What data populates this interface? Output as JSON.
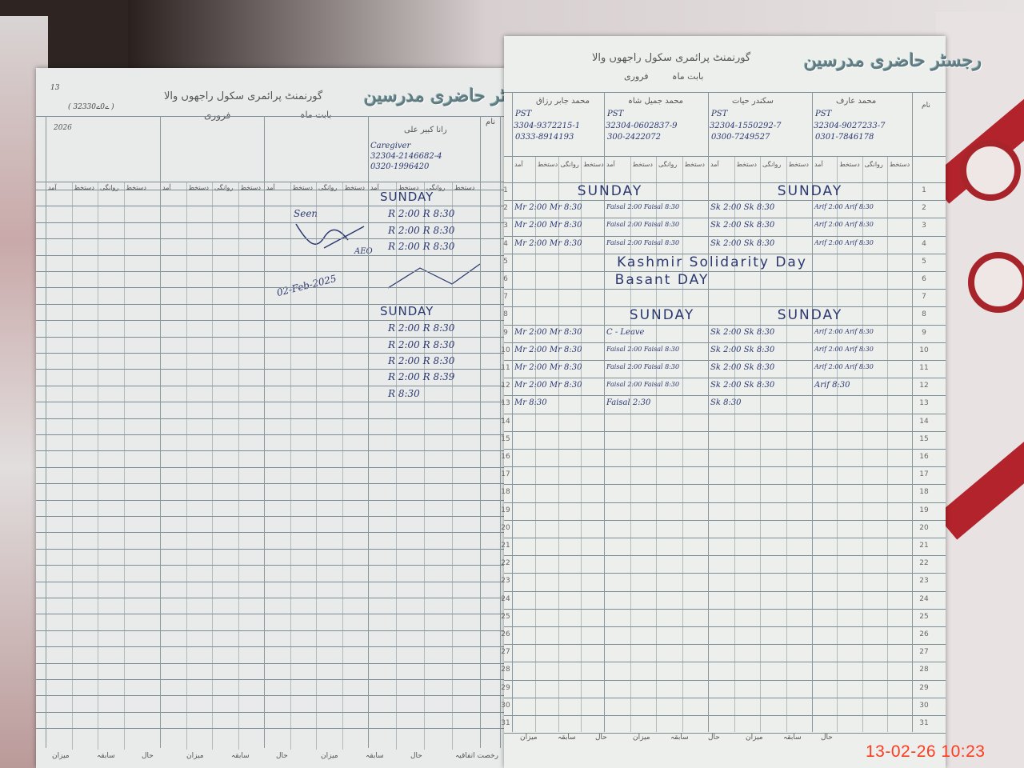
{
  "left_page": {
    "page_number": "13",
    "title": "رجسٹر حاضری مدرسین",
    "school": "گورنمنٹ پرائمری سکول راجھوں والا",
    "school_code": "( 32330ے0ے )",
    "month_label": "بابت ماہ",
    "month": "فروری",
    "year": "2026",
    "teacher": {
      "name": "رانا کبیر علی",
      "role": "Caregiver",
      "cnic": "32304-2146682-4",
      "phone": "0320-1996420"
    },
    "name_label": "نام",
    "sub_headers": [
      "آمد",
      "دستخط",
      "روانگی",
      "دستخط"
    ],
    "entries": [
      {
        "row": 1,
        "text": "SUNDAY"
      },
      {
        "row": 2,
        "text": "R 2:00  R 8:30"
      },
      {
        "row": 3,
        "text": "R 2:00  R 8:30"
      },
      {
        "row": 4,
        "text": "R 2:00  R 8:30"
      },
      {
        "row": 8,
        "text": "SUNDAY"
      },
      {
        "row": 9,
        "text": "R 2:00  R 8:30"
      },
      {
        "row": 10,
        "text": "R 2:00  R 8:30"
      },
      {
        "row": 11,
        "text": "R 2:00  R 8:30"
      },
      {
        "row": 12,
        "text": "R 2:00  R 8:39"
      },
      {
        "row": 13,
        "text": "R 8:30"
      }
    ],
    "signature": {
      "seen": "Seen",
      "role": "AEO",
      "date": "02-Feb-2025"
    },
    "footer_labels": [
      "میزان",
      "سابقہ",
      "حال",
      "میزان",
      "سابقہ",
      "حال",
      "میزان",
      "سابقہ",
      "حال",
      "رخصت اتفاقیہ"
    ]
  },
  "right_page": {
    "title": "رجسٹر حاضری مدرسین",
    "school": "گورنمنٹ پرائمری سکول راجھوں والا",
    "month_label": "بابت ماہ",
    "month": "فروری",
    "name_label": "نام",
    "teachers": [
      {
        "name": "محمد جابر رزاق",
        "role": "PST",
        "cnic": "3304-9372215-1",
        "phone": "0333-8914193"
      },
      {
        "name": "محمد جمیل شاہ",
        "role": "PST",
        "cnic": "32304-0602837-9",
        "phone": "300-2422072"
      },
      {
        "name": "سکندر حیات",
        "role": "PST",
        "cnic": "32304-1550292-7",
        "phone": "0300-7249527"
      },
      {
        "name": "محمد عارف",
        "role": "PST",
        "cnic": "32304-9027233-7",
        "phone": "0301-7846178"
      }
    ],
    "sub_headers": [
      "آمد",
      "دستخط",
      "روانگی",
      "دستخط"
    ],
    "span_entries": [
      {
        "row": 1,
        "from": 0,
        "to": 1,
        "text": "SUNDAY"
      },
      {
        "row": 1,
        "from": 2,
        "to": 3,
        "text": "SUNDAY"
      },
      {
        "row": 5,
        "from": 0,
        "to": 3,
        "text": "Kashmir Solidarity Day"
      },
      {
        "row": 6,
        "from": 0,
        "to": 2,
        "text": "Basant DAY"
      },
      {
        "row": 8,
        "from": 0,
        "to": 2,
        "text": "SUNDAY"
      },
      {
        "row": 8,
        "from": 2,
        "to": 3,
        "text": "SUNDAY"
      }
    ],
    "cell_entries": [
      {
        "row": 2,
        "col": 0,
        "text": "Mr 2:00 Mr 8:30"
      },
      {
        "row": 2,
        "col": 1,
        "text": "Faisal 2:00 Faisal 8:30"
      },
      {
        "row": 2,
        "col": 2,
        "text": "Sk 2:00 Sk 8:30"
      },
      {
        "row": 2,
        "col": 3,
        "text": "Arif 2:00 Arif 8:30"
      },
      {
        "row": 3,
        "col": 0,
        "text": "Mr 2:00 Mr 8:30"
      },
      {
        "row": 3,
        "col": 1,
        "text": "Faisal 2:00 Faisal 8:30"
      },
      {
        "row": 3,
        "col": 2,
        "text": "Sk 2:00 Sk 8:30"
      },
      {
        "row": 3,
        "col": 3,
        "text": "Arif 2:00 Arif 8:30"
      },
      {
        "row": 4,
        "col": 0,
        "text": "Mr 2:00 Mr 8:30"
      },
      {
        "row": 4,
        "col": 1,
        "text": "Faisal 2:00 Faisal 8:30"
      },
      {
        "row": 4,
        "col": 2,
        "text": "Sk 2:00 Sk 8:30"
      },
      {
        "row": 4,
        "col": 3,
        "text": "Arif 2:00 Arif 8:30"
      },
      {
        "row": 9,
        "col": 0,
        "text": "Mr 2:00 Mr 8:30"
      },
      {
        "row": 9,
        "col": 1,
        "text": "C - Leave"
      },
      {
        "row": 9,
        "col": 2,
        "text": "Sk 2:00 Sk 8:30"
      },
      {
        "row": 9,
        "col": 3,
        "text": "Arif 2:00 Arif 8:30"
      },
      {
        "row": 10,
        "col": 0,
        "text": "Mr 2:00 Mr 8:30"
      },
      {
        "row": 10,
        "col": 1,
        "text": "Faisal 2:00 Faisal 8:30"
      },
      {
        "row": 10,
        "col": 2,
        "text": "Sk 2:00 Sk 8:30"
      },
      {
        "row": 10,
        "col": 3,
        "text": "Arif 2:00 Arif 8:30"
      },
      {
        "row": 11,
        "col": 0,
        "text": "Mr 2:00 Mr 8:30"
      },
      {
        "row": 11,
        "col": 1,
        "text": "Faisal 2:00 Faisal 8:30"
      },
      {
        "row": 11,
        "col": 2,
        "text": "Sk 2:00 Sk 8:30"
      },
      {
        "row": 11,
        "col": 3,
        "text": "Arif 2:00 Arif 8:30"
      },
      {
        "row": 12,
        "col": 0,
        "text": "Mr 2:00 Mr 8:30"
      },
      {
        "row": 12,
        "col": 1,
        "text": "Faisal 2:00 Faisal 8:30"
      },
      {
        "row": 12,
        "col": 2,
        "text": "Sk 2:00 Sk 8:30"
      },
      {
        "row": 12,
        "col": 3,
        "text": "Arif 8:30"
      },
      {
        "row": 13,
        "col": 0,
        "text": "Mr 8:30"
      },
      {
        "row": 13,
        "col": 1,
        "text": "Faisal 2:30"
      },
      {
        "row": 13,
        "col": 2,
        "text": "Sk 8:30"
      }
    ],
    "row_numbers": [
      "1",
      "2",
      "3",
      "4",
      "5",
      "6",
      "7",
      "8",
      "9",
      "10",
      "11",
      "12",
      "13",
      "14",
      "15",
      "16",
      "17",
      "18",
      "19",
      "20",
      "21",
      "22",
      "23",
      "24",
      "25",
      "26",
      "27",
      "28",
      "29",
      "30",
      "31"
    ],
    "footer_labels": [
      "میزان",
      "سابقہ",
      "حال",
      "میزان",
      "سابقہ",
      "حال",
      "میزان",
      "سابقہ",
      "حال"
    ]
  },
  "timestamp": "13-02-26  10:23",
  "colors": {
    "ink": "#2b376f",
    "timestamp": "#ff3b1f",
    "cover_red": "#b3232b"
  }
}
